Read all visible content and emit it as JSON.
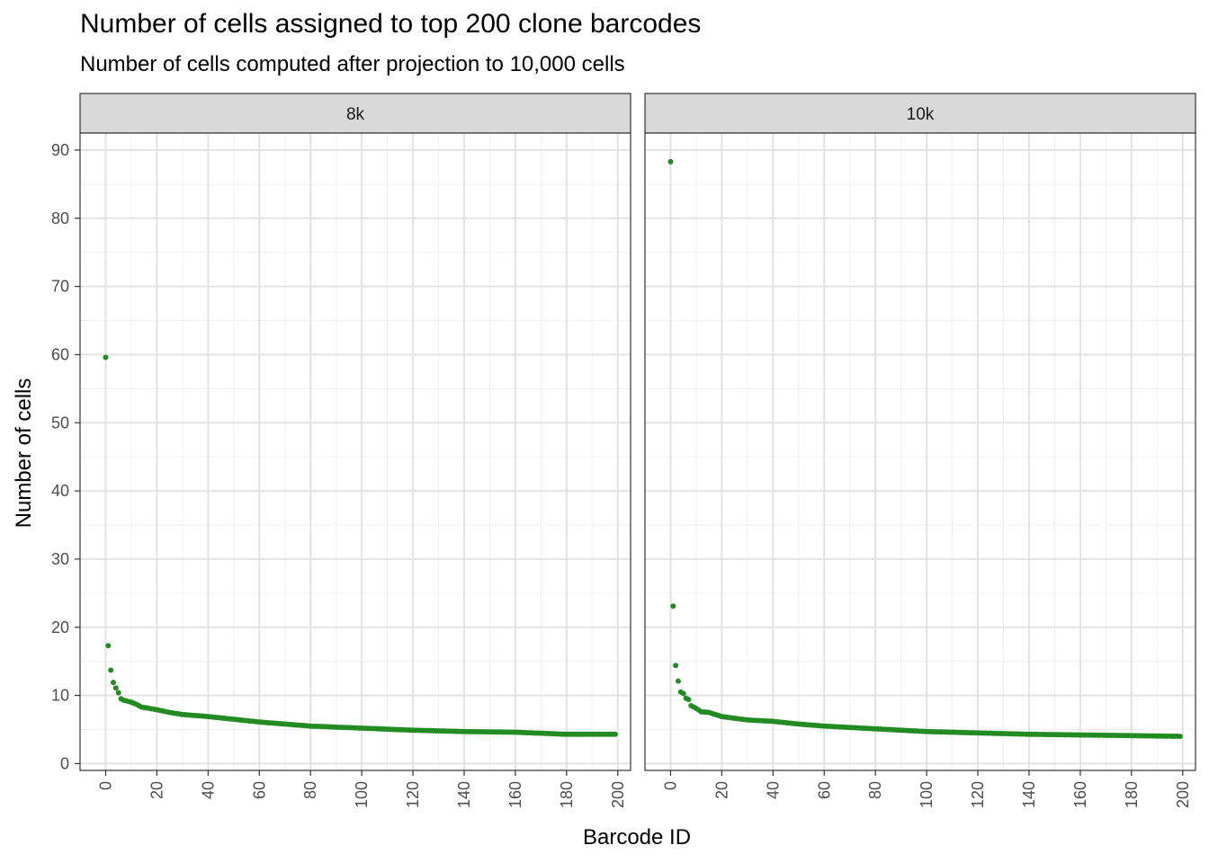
{
  "chart_data": {
    "type": "scatter",
    "title": "Number of cells assigned to top 200 clone barcodes",
    "subtitle": "Number of cells computed after projection to 10,000 cells",
    "xlabel": "Barcode ID",
    "ylabel": "Number of cells",
    "xlim": [
      -10,
      205
    ],
    "ylim": [
      -1,
      92.5
    ],
    "x_ticks": [
      0,
      20,
      40,
      60,
      80,
      100,
      120,
      140,
      160,
      180,
      200
    ],
    "y_ticks": [
      0,
      10,
      20,
      30,
      40,
      50,
      60,
      70,
      80,
      90
    ],
    "grid": true,
    "point_color": "#228B22",
    "panels": [
      {
        "label": "8k",
        "anchors": [
          [
            0,
            59.6
          ],
          [
            1,
            17.3
          ],
          [
            2,
            13.7
          ],
          [
            3,
            11.9
          ],
          [
            4,
            11.1
          ],
          [
            5,
            10.4
          ],
          [
            6,
            9.5
          ],
          [
            7,
            9.3
          ],
          [
            8,
            9.2
          ],
          [
            9,
            9.1
          ],
          [
            10,
            9.0
          ],
          [
            12,
            8.7
          ],
          [
            14,
            8.3
          ],
          [
            20,
            7.9
          ],
          [
            25,
            7.5
          ],
          [
            30,
            7.2
          ],
          [
            40,
            6.9
          ],
          [
            50,
            6.5
          ],
          [
            60,
            6.1
          ],
          [
            70,
            5.8
          ],
          [
            80,
            5.5
          ],
          [
            100,
            5.2
          ],
          [
            120,
            4.9
          ],
          [
            140,
            4.7
          ],
          [
            160,
            4.6
          ],
          [
            180,
            4.3
          ],
          [
            199,
            4.3
          ]
        ]
      },
      {
        "label": "10k",
        "anchors": [
          [
            0,
            88.3
          ],
          [
            1,
            23.1
          ],
          [
            2,
            14.4
          ],
          [
            3,
            12.1
          ],
          [
            4,
            10.5
          ],
          [
            5,
            10.3
          ],
          [
            6,
            9.6
          ],
          [
            7,
            9.4
          ],
          [
            8,
            8.5
          ],
          [
            10,
            8.1
          ],
          [
            12,
            7.6
          ],
          [
            15,
            7.5
          ],
          [
            20,
            6.9
          ],
          [
            30,
            6.4
          ],
          [
            40,
            6.2
          ],
          [
            50,
            5.8
          ],
          [
            60,
            5.5
          ],
          [
            80,
            5.1
          ],
          [
            100,
            4.7
          ],
          [
            120,
            4.5
          ],
          [
            140,
            4.3
          ],
          [
            160,
            4.2
          ],
          [
            180,
            4.1
          ],
          [
            199,
            4.0
          ]
        ]
      }
    ]
  }
}
